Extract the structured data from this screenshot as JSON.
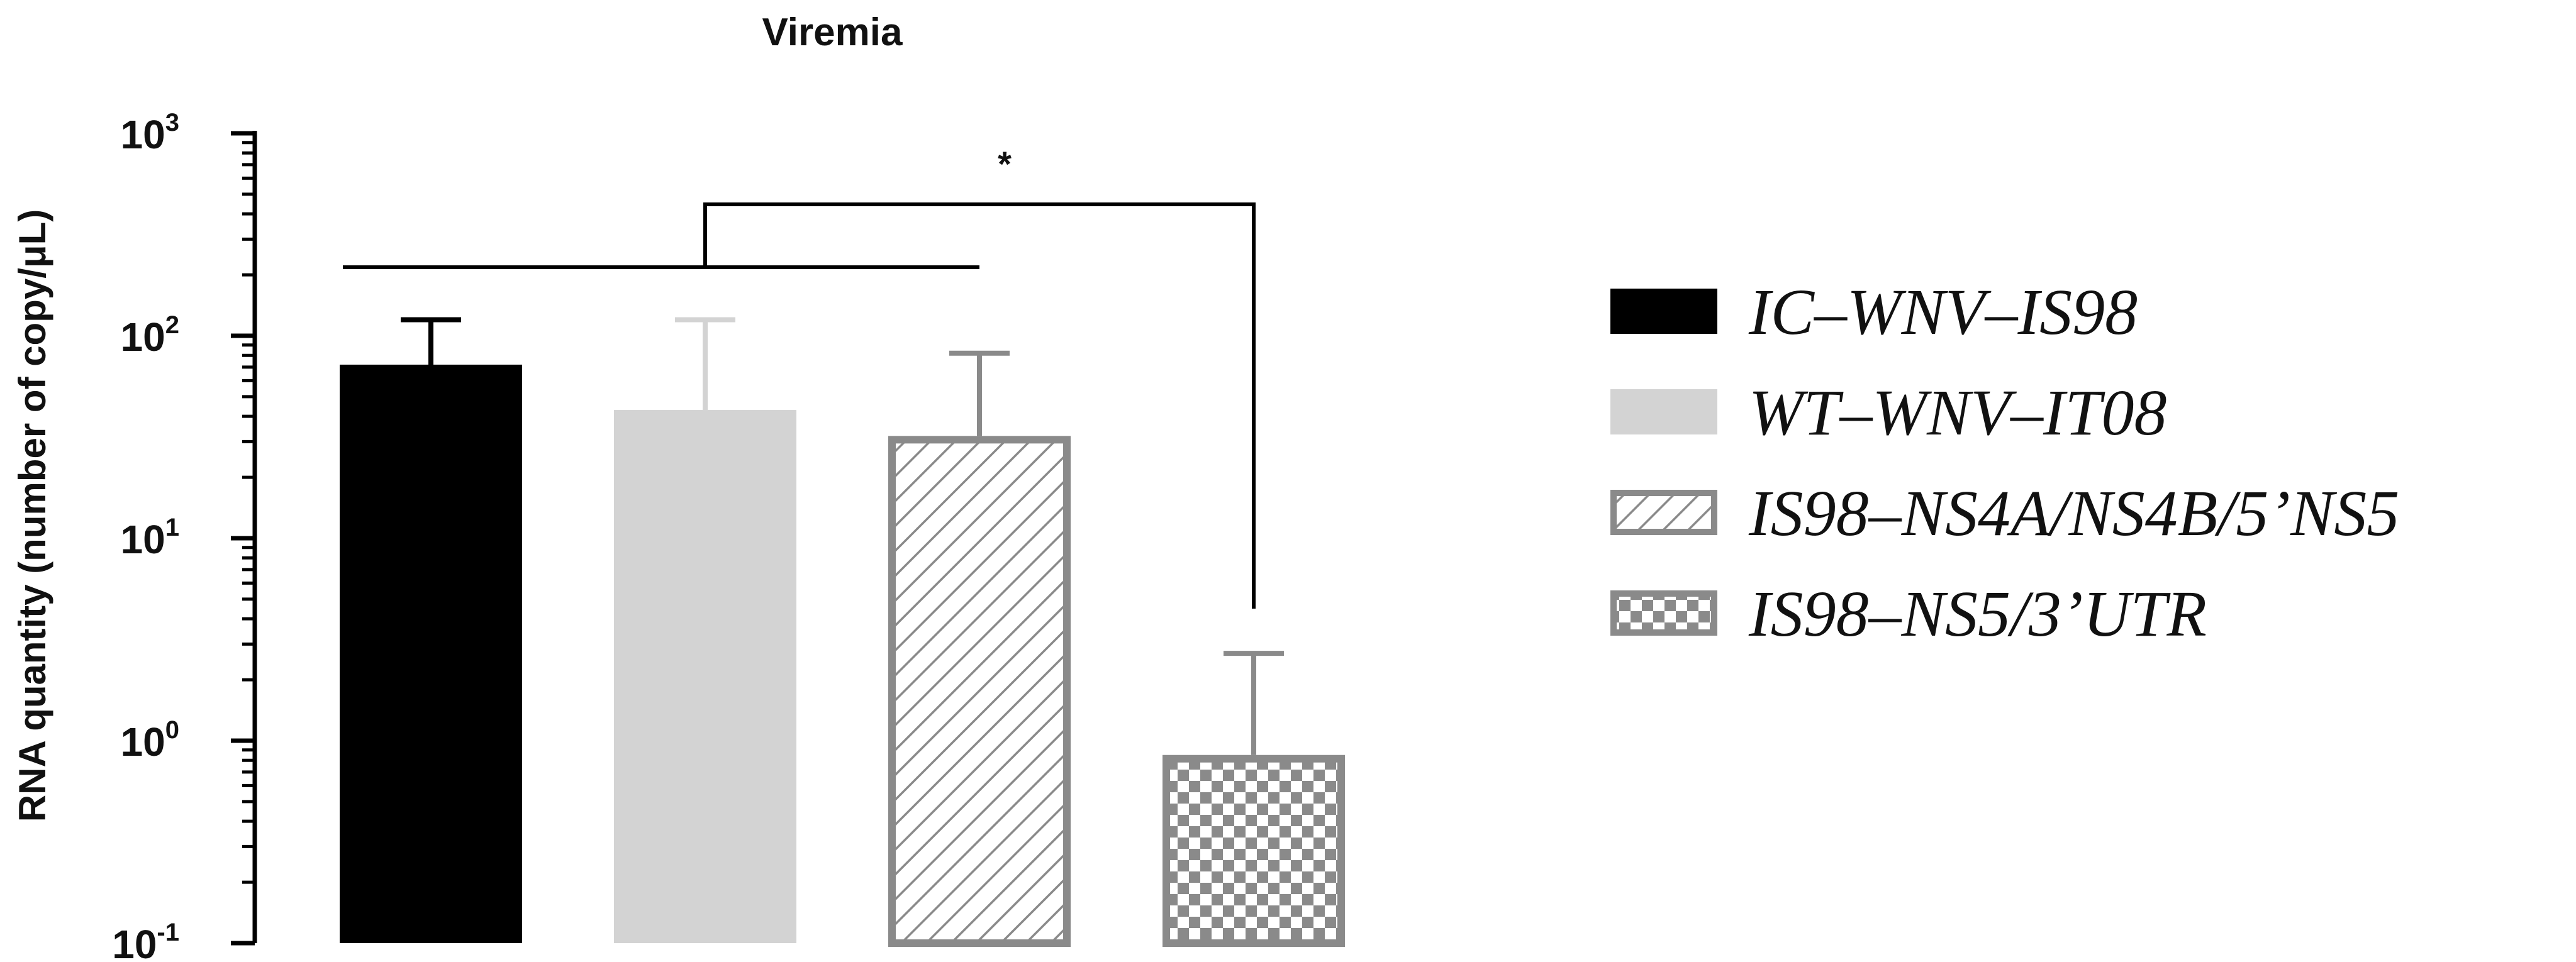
{
  "chart_data": {
    "type": "bar",
    "title": "Viremia",
    "ylabel": "RNA quantity (number of copy/μL)",
    "xlabel": "",
    "yscale": "log",
    "ylim": [
      0.1,
      1000
    ],
    "yticks": [
      {
        "base": "10",
        "exp": "-1",
        "value": 0.1
      },
      {
        "base": "10",
        "exp": "0",
        "value": 1
      },
      {
        "base": "10",
        "exp": "1",
        "value": 10
      },
      {
        "base": "10",
        "exp": "2",
        "value": 100
      },
      {
        "base": "10",
        "exp": "3",
        "value": 1000
      }
    ],
    "categories": [
      "IC–WNV–IS98",
      "WT–WNV–IT08",
      "IS98–NS4A/NS4B/5’NS5",
      "IS98–NS5/3’UTR"
    ],
    "values": [
      72,
      43,
      32,
      0.85
    ],
    "error_upper": [
      120,
      120,
      82,
      2.7
    ],
    "colors": [
      "#000000",
      "#d3d3d3",
      "#8a8a8a",
      "#8a8a8a"
    ],
    "fills": [
      "solid",
      "solid",
      "diagonal-hatch",
      "checkerboard"
    ],
    "legend_position": "right",
    "significance": {
      "label": "*",
      "group_a": [
        0,
        1,
        2
      ],
      "group_b": [
        3
      ]
    },
    "grid": false
  }
}
